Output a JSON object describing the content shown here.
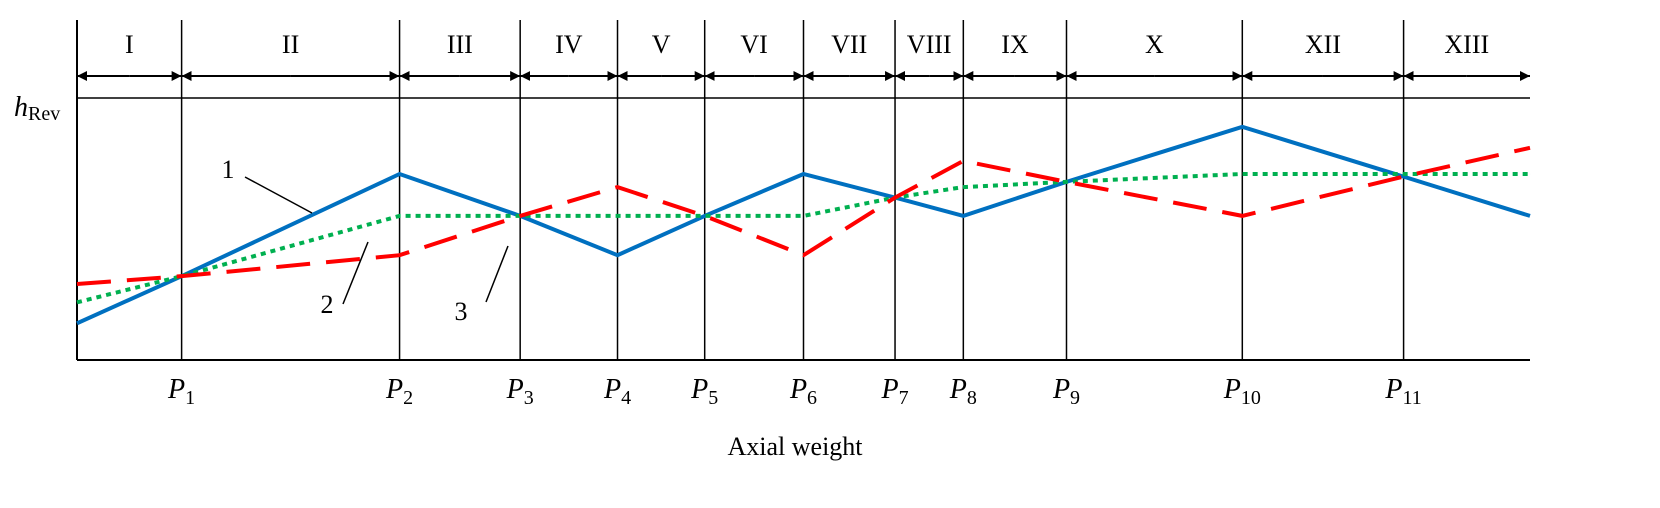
{
  "chart_data": {
    "type": "line",
    "xlabel": "Axial weight",
    "ylabel": "h",
    "ylabel_sub": "Rev",
    "x_boundaries": [
      {
        "name": "P",
        "sub": "1",
        "x": 7.2
      },
      {
        "name": "P",
        "sub": "2",
        "x": 22.2
      },
      {
        "name": "P",
        "sub": "3",
        "x": 30.5
      },
      {
        "name": "P",
        "sub": "4",
        "x": 37.2
      },
      {
        "name": "P",
        "sub": "5",
        "x": 43.2
      },
      {
        "name": "P",
        "sub": "6",
        "x": 50.0
      },
      {
        "name": "P",
        "sub": "7",
        "x": 56.3
      },
      {
        "name": "P",
        "sub": "8",
        "x": 61.0
      },
      {
        "name": "P",
        "sub": "9",
        "x": 68.1
      },
      {
        "name": "P",
        "sub": "10",
        "x": 80.2
      },
      {
        "name": "P",
        "sub": "11",
        "x": 91.3
      }
    ],
    "regions": [
      "I",
      "II",
      "III",
      "IV",
      "V",
      "VI",
      "VII",
      "VIII",
      "IX",
      "X",
      "XII",
      "XIII"
    ],
    "xlim": [
      0,
      100
    ],
    "ylim": [
      0,
      1
    ],
    "hrev_level": 1,
    "x": [
      0,
      7.2,
      22.2,
      30.5,
      37.2,
      43.2,
      50.0,
      56.3,
      61.0,
      68.1,
      80.2,
      91.3,
      100
    ],
    "series": [
      {
        "name": "1",
        "color": "#0070C0",
        "style": "solid",
        "values": [
          0.14,
          0.32,
          0.71,
          0.55,
          0.4,
          0.55,
          0.71,
          0.62,
          0.55,
          0.68,
          0.89,
          0.7,
          0.55
        ]
      },
      {
        "name": "2",
        "color": "#00B050",
        "style": "dotted",
        "values": [
          0.22,
          0.32,
          0.55,
          0.55,
          0.55,
          0.55,
          0.55,
          0.62,
          0.66,
          0.68,
          0.71,
          0.71,
          0.71
        ]
      },
      {
        "name": "3",
        "color": "#FF0000",
        "style": "dashed",
        "values": [
          0.29,
          0.32,
          0.4,
          0.55,
          0.66,
          0.55,
          0.4,
          0.62,
          0.76,
          0.68,
          0.55,
          0.7,
          0.81
        ]
      }
    ],
    "annotations": [
      "1",
      "2",
      "3"
    ]
  }
}
